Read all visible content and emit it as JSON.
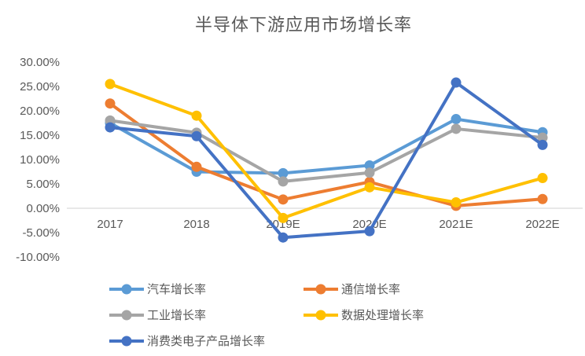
{
  "colors": {
    "background": "#FFFFFF",
    "title_text": "#595959",
    "axis_label_text": "#595959",
    "zero_gridline": "#D9D9D9"
  },
  "chart_data": {
    "type": "line",
    "title": "半导体下游应用市场增长率",
    "categories": [
      "2017",
      "2018",
      "2019E",
      "2020E",
      "2021E",
      "2022E"
    ],
    "xlabel": "",
    "ylabel": "",
    "y_axis": {
      "min": -10,
      "max": 30,
      "step": 5,
      "format": "percent",
      "tick_labels": [
        "30.00%",
        "25.00%",
        "20.00%",
        "15.00%",
        "10.00%",
        "5.00%",
        "0.00%",
        "-5.00%",
        "-10.00%"
      ]
    },
    "grid": "zero-line-only",
    "legend_position": "bottom-left, two columns",
    "marker_style": "line-with-circle",
    "series": [
      {
        "key": "auto",
        "name": "汽车增长率",
        "color": "#5B9BD5",
        "values": [
          17.5,
          7.5,
          7.2,
          8.8,
          18.3,
          15.6
        ]
      },
      {
        "key": "communications",
        "name": "通信增长率",
        "color": "#ED7D31",
        "values": [
          21.5,
          8.5,
          1.8,
          5.4,
          0.5,
          1.9
        ]
      },
      {
        "key": "industrial",
        "name": "工业增长率",
        "color": "#A5A5A5",
        "values": [
          18.0,
          15.5,
          5.5,
          7.3,
          16.3,
          14.5
        ]
      },
      {
        "key": "data-processing",
        "name": "数据处理增长率",
        "color": "#FFC000",
        "values": [
          25.5,
          19.0,
          -2.0,
          4.3,
          1.2,
          6.2
        ]
      },
      {
        "key": "consumer-electronics",
        "name": "消费类电子产品增长率",
        "color": "#4472C4",
        "values": [
          16.6,
          14.8,
          -6.0,
          -4.7,
          25.8,
          13.0
        ]
      }
    ],
    "legend_rows": [
      [
        0,
        1
      ],
      [
        2,
        3
      ],
      [
        4
      ]
    ]
  }
}
